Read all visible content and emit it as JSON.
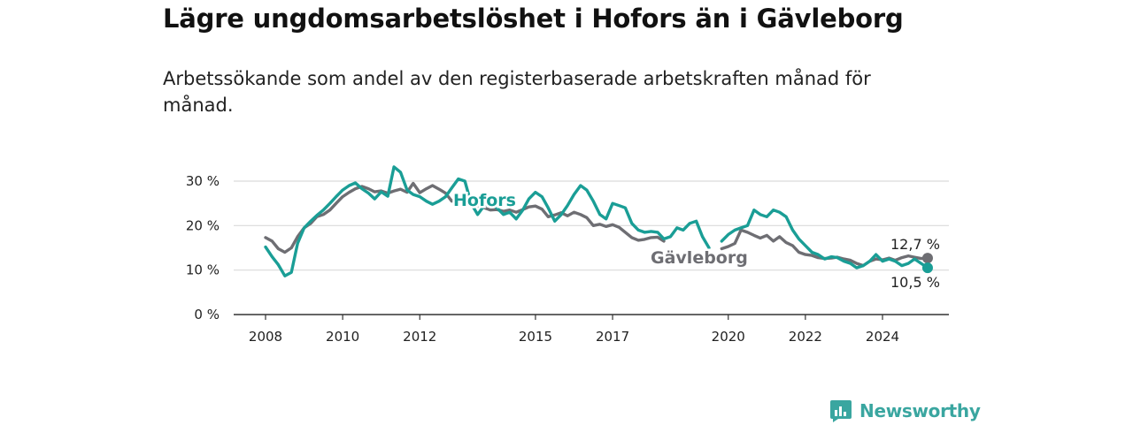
{
  "title": "Lägre ungdomsarbetslöshet i Hofors än i Gävleborg",
  "subtitle": "Arbetssökande som andel av den registerbaserade arbetskraften månad för månad.",
  "brand": {
    "name": "Newsworthy",
    "icon": "newsworthy-logo-icon",
    "color": "#3aa6a0"
  },
  "chart_data": {
    "type": "line",
    "title": "Lägre ungdomsarbetslöshet i Hofors än i Gävleborg",
    "ylim": [
      0,
      30
    ],
    "xlim": [
      2008,
      2025.75
    ],
    "yticks": [
      {
        "value": 0,
        "label": "0 %"
      },
      {
        "value": 10,
        "label": "10 %"
      },
      {
        "value": 20,
        "label": "20 %"
      },
      {
        "value": 30,
        "label": "30 %"
      }
    ],
    "xticks": [
      {
        "value": 2008,
        "label": "2008"
      },
      {
        "value": 2010,
        "label": "2010"
      },
      {
        "value": 2012,
        "label": "2012"
      },
      {
        "value": 2015,
        "label": "2015"
      },
      {
        "value": 2017,
        "label": "2017"
      },
      {
        "value": 2020,
        "label": "2020"
      },
      {
        "value": 2022,
        "label": "2022"
      },
      {
        "value": 2024,
        "label": "2024"
      }
    ],
    "grid": true,
    "legend": "inline",
    "series": [
      {
        "name": "Gävleborg",
        "color": "#6e6e73",
        "end_label": "12,7 %",
        "points": [
          [
            2008.0,
            17.3
          ],
          [
            2008.17,
            16.5
          ],
          [
            2008.33,
            14.8
          ],
          [
            2008.5,
            14.0
          ],
          [
            2008.67,
            15.0
          ],
          [
            2008.83,
            17.5
          ],
          [
            2009.0,
            19.5
          ],
          [
            2009.17,
            20.5
          ],
          [
            2009.33,
            22.0
          ],
          [
            2009.5,
            22.5
          ],
          [
            2009.67,
            23.5
          ],
          [
            2009.83,
            25.0
          ],
          [
            2010.0,
            26.5
          ],
          [
            2010.17,
            27.5
          ],
          [
            2010.33,
            28.3
          ],
          [
            2010.5,
            28.8
          ],
          [
            2010.67,
            28.3
          ],
          [
            2010.83,
            27.6
          ],
          [
            2011.0,
            27.8
          ],
          [
            2011.17,
            27.3
          ],
          [
            2011.33,
            27.8
          ],
          [
            2011.5,
            28.2
          ],
          [
            2011.67,
            27.5
          ],
          [
            2011.83,
            29.5
          ],
          [
            2012.0,
            27.4
          ],
          [
            2012.17,
            28.3
          ],
          [
            2012.33,
            29.0
          ],
          [
            2012.5,
            28.2
          ],
          [
            2012.67,
            27.3
          ],
          [
            2012.83,
            25.5
          ],
          [
            2013.0,
            26.0
          ],
          [
            2013.17,
            26.8
          ],
          [
            2013.33,
            25.5
          ],
          [
            2013.5,
            24.5
          ],
          [
            2013.67,
            24.0
          ],
          [
            2013.83,
            23.5
          ],
          [
            2014.0,
            23.6
          ],
          [
            2014.17,
            23.2
          ],
          [
            2014.33,
            23.5
          ],
          [
            2014.5,
            23.0
          ],
          [
            2014.67,
            23.6
          ],
          [
            2014.83,
            24.2
          ],
          [
            2015.0,
            24.4
          ],
          [
            2015.17,
            23.7
          ],
          [
            2015.33,
            22.0
          ],
          [
            2015.5,
            22.4
          ],
          [
            2015.67,
            22.9
          ],
          [
            2015.83,
            22.2
          ],
          [
            2016.0,
            23.0
          ],
          [
            2016.17,
            22.5
          ],
          [
            2016.33,
            21.8
          ],
          [
            2016.5,
            20.0
          ],
          [
            2016.67,
            20.3
          ],
          [
            2016.83,
            19.8
          ],
          [
            2017.0,
            20.2
          ],
          [
            2017.17,
            19.6
          ],
          [
            2017.33,
            18.5
          ],
          [
            2017.5,
            17.3
          ],
          [
            2017.67,
            16.7
          ],
          [
            2017.83,
            16.9
          ],
          [
            2018.0,
            17.3
          ],
          [
            2018.17,
            17.4
          ],
          [
            2018.33,
            16.5
          ],
          [
            2018.5,
            null
          ],
          [
            2018.67,
            null
          ],
          [
            2018.83,
            null
          ],
          [
            2019.0,
            null
          ],
          [
            2019.17,
            null
          ],
          [
            2019.33,
            null
          ],
          [
            2019.5,
            null
          ],
          [
            2019.67,
            null
          ],
          [
            2019.83,
            14.8
          ],
          [
            2020.0,
            15.3
          ],
          [
            2020.17,
            16.0
          ],
          [
            2020.33,
            19.0
          ],
          [
            2020.5,
            18.5
          ],
          [
            2020.67,
            17.8
          ],
          [
            2020.83,
            17.2
          ],
          [
            2021.0,
            17.8
          ],
          [
            2021.17,
            16.5
          ],
          [
            2021.33,
            17.5
          ],
          [
            2021.5,
            16.2
          ],
          [
            2021.67,
            15.5
          ],
          [
            2021.83,
            14.0
          ],
          [
            2022.0,
            13.5
          ],
          [
            2022.17,
            13.3
          ],
          [
            2022.33,
            12.8
          ],
          [
            2022.5,
            12.6
          ],
          [
            2022.67,
            12.7
          ],
          [
            2022.83,
            12.9
          ],
          [
            2023.0,
            12.5
          ],
          [
            2023.17,
            12.2
          ],
          [
            2023.33,
            11.5
          ],
          [
            2023.5,
            11.0
          ],
          [
            2023.67,
            12.0
          ],
          [
            2023.83,
            12.5
          ],
          [
            2024.0,
            12.3
          ],
          [
            2024.17,
            12.7
          ],
          [
            2024.33,
            12.2
          ],
          [
            2024.5,
            12.8
          ],
          [
            2024.67,
            13.2
          ],
          [
            2024.83,
            12.9
          ],
          [
            2025.0,
            12.6
          ],
          [
            2025.17,
            12.7
          ]
        ]
      },
      {
        "name": "Hofors",
        "color": "#1a9e96",
        "end_label": "10,5 %",
        "points": [
          [
            2008.0,
            15.2
          ],
          [
            2008.17,
            13.0
          ],
          [
            2008.33,
            11.2
          ],
          [
            2008.5,
            8.7
          ],
          [
            2008.67,
            9.5
          ],
          [
            2008.83,
            16.0
          ],
          [
            2009.0,
            19.5
          ],
          [
            2009.17,
            21.0
          ],
          [
            2009.33,
            22.3
          ],
          [
            2009.5,
            23.5
          ],
          [
            2009.67,
            25.0
          ],
          [
            2009.83,
            26.5
          ],
          [
            2010.0,
            28.0
          ],
          [
            2010.17,
            29.0
          ],
          [
            2010.33,
            29.6
          ],
          [
            2010.5,
            28.3
          ],
          [
            2010.67,
            27.3
          ],
          [
            2010.83,
            26.0
          ],
          [
            2011.0,
            27.6
          ],
          [
            2011.17,
            26.6
          ],
          [
            2011.33,
            33.2
          ],
          [
            2011.5,
            32.0
          ],
          [
            2011.67,
            28.0
          ],
          [
            2011.83,
            27.0
          ],
          [
            2012.0,
            26.5
          ],
          [
            2012.17,
            25.5
          ],
          [
            2012.33,
            24.8
          ],
          [
            2012.5,
            25.5
          ],
          [
            2012.67,
            26.5
          ],
          [
            2012.83,
            28.5
          ],
          [
            2013.0,
            30.5
          ],
          [
            2013.17,
            30.0
          ],
          [
            2013.33,
            25.0
          ],
          [
            2013.5,
            22.5
          ],
          [
            2013.67,
            24.5
          ],
          [
            2013.83,
            25.0
          ],
          [
            2014.0,
            24.0
          ],
          [
            2014.17,
            22.5
          ],
          [
            2014.33,
            23.0
          ],
          [
            2014.5,
            21.5
          ],
          [
            2014.67,
            23.5
          ],
          [
            2014.83,
            26.0
          ],
          [
            2015.0,
            27.5
          ],
          [
            2015.17,
            26.5
          ],
          [
            2015.33,
            24.0
          ],
          [
            2015.5,
            21.0
          ],
          [
            2015.67,
            22.5
          ],
          [
            2015.83,
            24.5
          ],
          [
            2016.0,
            27.0
          ],
          [
            2016.17,
            29.0
          ],
          [
            2016.33,
            28.0
          ],
          [
            2016.5,
            25.5
          ],
          [
            2016.67,
            22.5
          ],
          [
            2016.83,
            21.5
          ],
          [
            2017.0,
            25.0
          ],
          [
            2017.17,
            24.5
          ],
          [
            2017.33,
            24.0
          ],
          [
            2017.5,
            20.5
          ],
          [
            2017.67,
            19.0
          ],
          [
            2017.83,
            18.5
          ],
          [
            2018.0,
            18.7
          ],
          [
            2018.17,
            18.5
          ],
          [
            2018.33,
            17.0
          ],
          [
            2018.5,
            17.5
          ],
          [
            2018.67,
            19.5
          ],
          [
            2018.83,
            19.0
          ],
          [
            2019.0,
            20.5
          ],
          [
            2019.17,
            21.0
          ],
          [
            2019.33,
            17.5
          ],
          [
            2019.5,
            15.0
          ],
          [
            2019.67,
            null
          ],
          [
            2019.83,
            16.5
          ],
          [
            2020.0,
            18.0
          ],
          [
            2020.17,
            19.0
          ],
          [
            2020.33,
            19.5
          ],
          [
            2020.5,
            20.0
          ],
          [
            2020.67,
            23.5
          ],
          [
            2020.83,
            22.5
          ],
          [
            2021.0,
            22.0
          ],
          [
            2021.17,
            23.5
          ],
          [
            2021.33,
            23.0
          ],
          [
            2021.5,
            22.0
          ],
          [
            2021.67,
            19.0
          ],
          [
            2021.83,
            17.0
          ],
          [
            2022.0,
            15.5
          ],
          [
            2022.17,
            14.0
          ],
          [
            2022.33,
            13.5
          ],
          [
            2022.5,
            12.5
          ],
          [
            2022.67,
            13.0
          ],
          [
            2022.83,
            12.8
          ],
          [
            2023.0,
            12.0
          ],
          [
            2023.17,
            11.5
          ],
          [
            2023.33,
            10.5
          ],
          [
            2023.5,
            11.0
          ],
          [
            2023.67,
            12.0
          ],
          [
            2023.83,
            13.5
          ],
          [
            2024.0,
            12.0
          ],
          [
            2024.17,
            12.5
          ],
          [
            2024.33,
            12.0
          ],
          [
            2024.5,
            11.0
          ],
          [
            2024.67,
            11.5
          ],
          [
            2024.83,
            12.5
          ],
          [
            2025.0,
            11.5
          ],
          [
            2025.17,
            10.5
          ]
        ]
      }
    ]
  }
}
